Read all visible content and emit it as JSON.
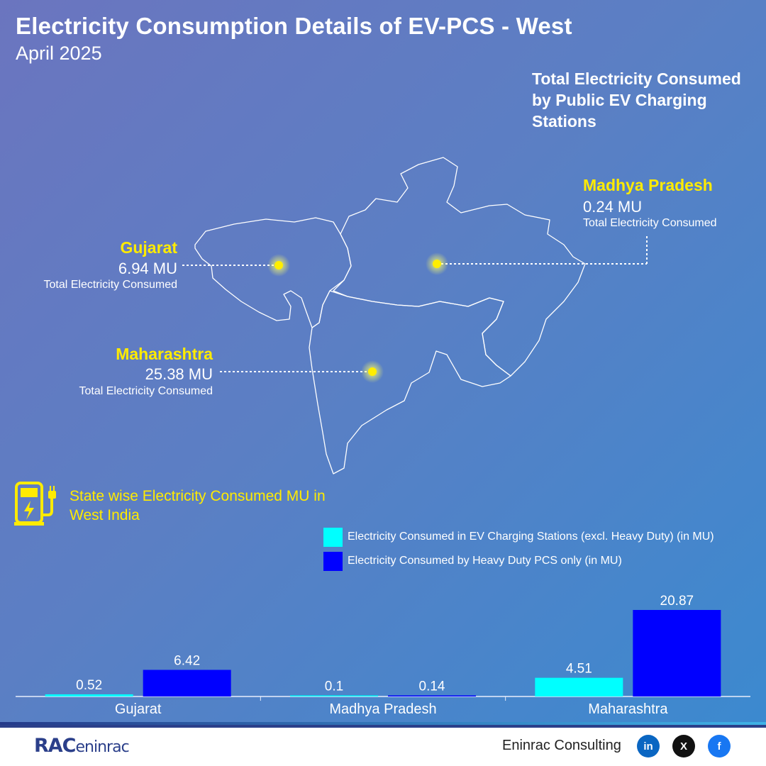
{
  "header": {
    "title": "Electricity Consumption Details of EV-PCS - West",
    "subtitle": "April 2025",
    "total_label": "Total Electricity Consumed by Public EV Charging Stations"
  },
  "map": {
    "states": [
      {
        "id": "gujarat",
        "name": "Gujarat",
        "value": "6.94 MU",
        "note": "Total Electricity Consumed"
      },
      {
        "id": "madhya-pradesh",
        "name": "Madhya Pradesh",
        "value": "0.24 MU",
        "note": "Total Electricity Consumed"
      },
      {
        "id": "maharashtra",
        "name": "Maharashtra",
        "value": "25.38 MU",
        "note": "Total Electricity Consumed"
      }
    ]
  },
  "section_title": "State wise Electricity Consumed MU in West India",
  "legend": [
    {
      "label": "Electricity Consumed in EV Charging Stations (excl. Heavy Duty) (in MU)",
      "color": "#00ffff"
    },
    {
      "label": "Electricity Consumed by Heavy Duty PCS only (in MU)",
      "color": "#0000ff"
    }
  ],
  "chart_data": {
    "type": "bar",
    "categories": [
      "Gujarat",
      "Madhya Pradesh",
      "Maharashtra"
    ],
    "series": [
      {
        "name": "Electricity Consumed in EV Charging Stations (excl. Heavy Duty) (in MU)",
        "values": [
          0.52,
          0.1,
          4.51
        ],
        "color": "#00ffff"
      },
      {
        "name": "Electricity Consumed by Heavy Duty PCS only (in MU)",
        "values": [
          6.42,
          0.14,
          20.87
        ],
        "color": "#0000ff"
      }
    ],
    "data_labels": [
      [
        "0.52",
        "0.1",
        "4.51"
      ],
      [
        "6.42",
        "0.14",
        "20.87"
      ]
    ],
    "ylim": [
      0,
      20.87
    ],
    "grid": false,
    "legend": "top-right"
  },
  "footer": {
    "brand_a": "RAC",
    "brand_b": "eninrac",
    "company": "Eninrac Consulting",
    "social": [
      {
        "icon": "linkedin-icon",
        "glyph": "in",
        "color": "#0a66c2"
      },
      {
        "icon": "x-icon",
        "glyph": "X",
        "color": "#111111"
      },
      {
        "icon": "facebook-icon",
        "glyph": "f",
        "color": "#1877f2"
      }
    ]
  }
}
